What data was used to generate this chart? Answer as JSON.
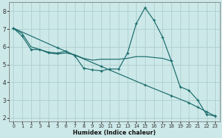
{
  "xlabel": "Humidex (Indice chaleur)",
  "bg_color": "#cce8e8",
  "grid_color": "#b0d0d0",
  "line_color": "#1a6b6b",
  "xlim": [
    -0.5,
    23.5
  ],
  "ylim": [
    1.8,
    8.5
  ],
  "xticks": [
    0,
    1,
    2,
    3,
    4,
    5,
    6,
    7,
    8,
    9,
    10,
    11,
    12,
    13,
    14,
    15,
    16,
    17,
    18,
    19,
    20,
    21,
    22,
    23
  ],
  "yticks": [
    2,
    3,
    4,
    5,
    6,
    7,
    8
  ],
  "lines": [
    {
      "x": [
        0,
        1,
        2,
        3,
        4,
        5,
        6,
        7,
        8,
        9,
        10,
        11,
        12,
        13,
        14,
        15,
        16,
        17,
        18,
        19,
        20,
        21,
        22,
        23
      ],
      "y": [
        7.05,
        6.6,
        5.85,
        5.85,
        5.7,
        5.65,
        5.75,
        5.5,
        4.8,
        4.7,
        4.65,
        4.75,
        4.75,
        5.65,
        7.3,
        8.2,
        7.5,
        6.55,
        5.2,
        3.75,
        3.55,
        3.0,
        2.2,
        2.1
      ],
      "has_markers": true
    },
    {
      "x": [
        0,
        1,
        2,
        3,
        4,
        5,
        6,
        7,
        8,
        9,
        10,
        11,
        12,
        13,
        14,
        15,
        16,
        17,
        18
      ],
      "y": [
        7.05,
        6.75,
        6.0,
        5.85,
        5.65,
        5.6,
        5.65,
        5.55,
        5.35,
        5.25,
        5.3,
        5.3,
        5.3,
        5.35,
        5.45,
        5.45,
        5.4,
        5.35,
        5.2
      ],
      "has_markers": false
    },
    {
      "x": [
        0,
        5,
        10,
        15,
        18,
        20,
        21,
        22,
        23
      ],
      "y": [
        7.05,
        5.95,
        4.9,
        3.85,
        3.25,
        2.85,
        2.6,
        2.35,
        2.1
      ],
      "has_markers": true
    }
  ]
}
